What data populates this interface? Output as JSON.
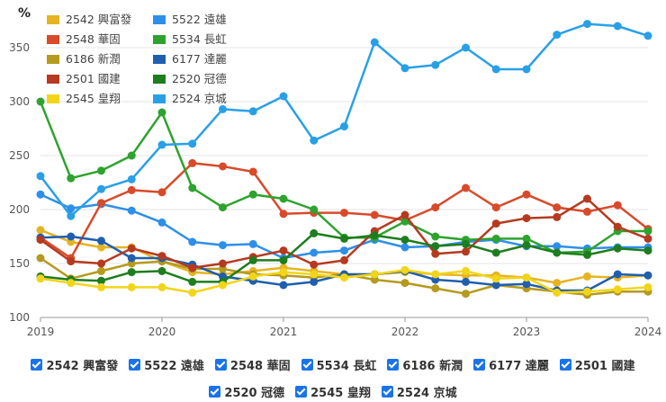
{
  "chart_data": {
    "type": "line",
    "ylabel": "%",
    "ylim": [
      100,
      380
    ],
    "yticks": [
      "100",
      "150",
      "200",
      "250",
      "300",
      "350"
    ],
    "ytick_values": [
      100,
      150,
      200,
      250,
      300,
      350
    ],
    "xlim": [
      2019,
      2024
    ],
    "xticks": [
      "2019",
      "2020",
      "2021",
      "2022",
      "2023",
      "2024"
    ],
    "xtick_values": [
      2019,
      2020,
      2021,
      2022,
      2023,
      2024
    ],
    "x": [
      2019.0,
      2019.25,
      2019.5,
      2019.75,
      2020.0,
      2020.25,
      2020.5,
      2020.75,
      2021.0,
      2021.25,
      2021.5,
      2021.75,
      2022.0,
      2022.25,
      2022.5,
      2022.75,
      2023.0,
      2023.25,
      2023.5,
      2023.75,
      2024.0
    ],
    "series": [
      {
        "name": "2542 興富發",
        "color": "#e6b422",
        "values": [
          181,
          170,
          165,
          165,
          152,
          142,
          140,
          143,
          146,
          143,
          140,
          140,
          142,
          140,
          139,
          139,
          137,
          132,
          138,
          137,
          139
        ]
      },
      {
        "name": "5522 遠雄",
        "color": "#2e8fe8",
        "values": [
          214,
          201,
          205,
          199,
          188,
          170,
          167,
          168,
          155,
          160,
          162,
          172,
          165,
          166,
          170,
          172,
          166,
          166,
          164,
          165,
          165
        ]
      },
      {
        "name": "2548 華固",
        "color": "#d84a2a",
        "values": [
          174,
          155,
          206,
          218,
          216,
          243,
          240,
          235,
          196,
          197,
          197,
          195,
          190,
          202,
          220,
          202,
          214,
          202,
          198,
          204,
          182
        ]
      },
      {
        "name": "5534 長虹",
        "color": "#2ea32e",
        "values": [
          300,
          229,
          236,
          250,
          290,
          220,
          202,
          214,
          210,
          200,
          174,
          174,
          189,
          175,
          172,
          173,
          173,
          160,
          161,
          180,
          180
        ]
      },
      {
        "name": "6186 新潤",
        "color": "#b59a1e",
        "values": [
          155,
          136,
          143,
          150,
          152,
          145,
          145,
          140,
          139,
          137,
          140,
          135,
          132,
          127,
          122,
          130,
          127,
          124,
          121,
          124,
          124
        ]
      },
      {
        "name": "6177 達麗",
        "color": "#1f5fad",
        "values": [
          174,
          175,
          171,
          155,
          155,
          149,
          138,
          134,
          130,
          133,
          140,
          140,
          143,
          135,
          133,
          130,
          131,
          125,
          125,
          140,
          139
        ]
      },
      {
        "name": "2501 國建",
        "color": "#b53a20",
        "values": [
          172,
          152,
          150,
          164,
          157,
          146,
          150,
          156,
          162,
          149,
          153,
          180,
          195,
          159,
          161,
          187,
          192,
          193,
          210,
          184,
          173
        ]
      },
      {
        "name": "2520 冠德",
        "color": "#1e7d1e",
        "values": [
          138,
          135,
          134,
          142,
          143,
          133,
          133,
          153,
          153,
          178,
          173,
          176,
          172,
          166,
          168,
          160,
          167,
          160,
          158,
          164,
          162
        ]
      },
      {
        "name": "2545 皇翔",
        "color": "#f2d51a",
        "values": [
          136,
          132,
          128,
          128,
          128,
          123,
          130,
          138,
          142,
          140,
          137,
          140,
          144,
          140,
          143,
          136,
          137,
          123,
          124,
          126,
          128
        ]
      },
      {
        "name": "2524 京城",
        "color": "#29a0e6",
        "values": [
          231,
          194,
          219,
          228,
          260,
          261,
          293,
          291,
          305,
          264,
          277,
          355,
          331,
          334,
          350,
          330,
          330,
          362,
          372,
          370,
          361
        ]
      }
    ]
  },
  "legend_checkbox_label": "checked"
}
